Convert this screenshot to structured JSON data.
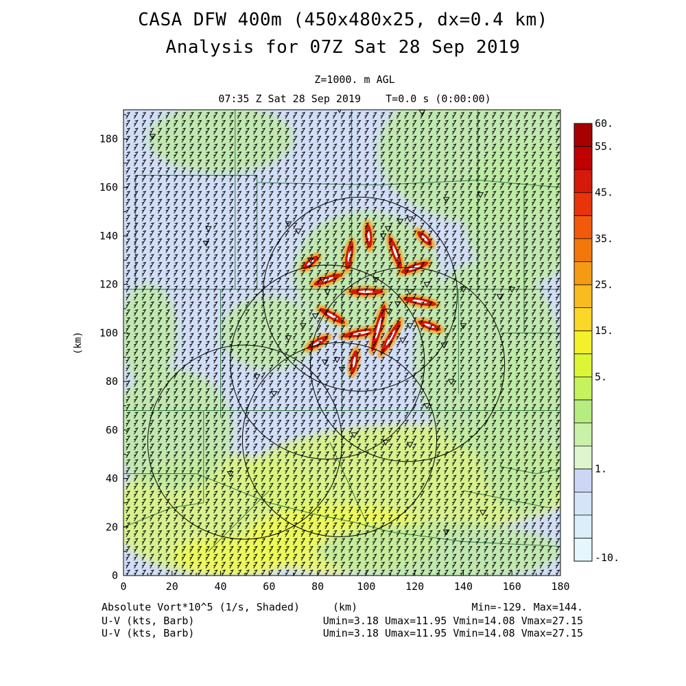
{
  "header": {
    "title_line1": "CASA DFW 400m (450x480x25, dx=0.4 km)",
    "title_line2": "Analysis for 07Z Sat 28 Sep 2019",
    "level": "Z=1000. m AGL",
    "valid_time": "07:35 Z Sat 28 Sep 2019    T=0.0 s (0:00:00)"
  },
  "footer": {
    "field": "Absolute Vort*10^5 (1/s, Shaded)",
    "xunit": "(km)",
    "minmax": "Min=-129. Max=144.",
    "vec1_label": "U-V (kts, Barb)",
    "vec1_stats": "Umin=3.18 Umax=11.95 Vmin=14.08 Vmax=27.15",
    "vec2_label": "U-V (kts, Barb)",
    "vec2_stats": "Umin=3.18 Umax=11.95 Vmin=14.08 Vmax=27.15"
  },
  "colors": {
    "background": "#d2def7",
    "green_light": "#bfeaa5",
    "green_yellow": "#d9f57a",
    "yellow": "#eefa55",
    "orange": "#f5a21a",
    "red": "#d51a0b",
    "county_line": "#2f7a45",
    "barb": "#000000",
    "radar_ring": "#000000"
  },
  "chart_data": {
    "type": "heatmap",
    "title": "CASA DFW 400m (450x480x25, dx=0.4 km) Analysis for 07Z Sat 28 Sep 2019",
    "xlabel": "(km)",
    "ylabel": "(km)",
    "xlim": [
      0,
      180
    ],
    "ylim": [
      0,
      192
    ],
    "x_ticks": [
      "0",
      "20",
      "40",
      "60",
      "80",
      "100",
      "120",
      "140",
      "160",
      "180"
    ],
    "y_ticks": [
      "0",
      "20",
      "40",
      "60",
      "80",
      "100",
      "120",
      "140",
      "160",
      "180"
    ],
    "field_units": "1/s x 10^5",
    "field_min": -129,
    "field_max": 144,
    "colorbar": {
      "labels": [
        "60.",
        "55.",
        "45.",
        "35.",
        "25.",
        "15.",
        "5.",
        "1.",
        "-10."
      ],
      "colors": [
        "#a70000",
        "#c00000",
        "#d51a0b",
        "#e8340a",
        "#f25a0b",
        "#f2780c",
        "#f59a15",
        "#f9bb20",
        "#fcd629",
        "#f4f02b",
        "#dcf535",
        "#c5f25e",
        "#b6ec82",
        "#c9f1aa",
        "#dff5cf",
        "#cdd7f5",
        "#d5e5f7",
        "#dbeefa",
        "#e5f6fc"
      ]
    },
    "radar_rings_km": [
      {
        "cx": 97.5,
        "cy": 116,
        "r": 40
      },
      {
        "cx": 84,
        "cy": 88,
        "r": 40
      },
      {
        "cx": 117,
        "cy": 87,
        "r": 40
      },
      {
        "cx": 50,
        "cy": 55,
        "r": 40
      },
      {
        "cx": 89,
        "cy": 56,
        "r": 40
      }
    ],
    "wind": {
      "u_min": 3.18,
      "u_max": 11.95,
      "v_min": 14.08,
      "v_max": 27.15,
      "units": "kts"
    },
    "features": [
      {
        "type": "vorticity-streak",
        "x": 100,
        "y": 117,
        "angle": 0,
        "len": 14
      },
      {
        "type": "vorticity-streak",
        "x": 98,
        "y": 100,
        "angle": 10,
        "len": 16
      },
      {
        "type": "vorticity-streak",
        "x": 105,
        "y": 102,
        "angle": 75,
        "len": 20
      },
      {
        "type": "vorticity-streak",
        "x": 110,
        "y": 98,
        "angle": 60,
        "len": 16
      },
      {
        "type": "vorticity-streak",
        "x": 93,
        "y": 132,
        "angle": 80,
        "len": 12
      },
      {
        "type": "vorticity-streak",
        "x": 112,
        "y": 133,
        "angle": 110,
        "len": 14
      },
      {
        "type": "vorticity-streak",
        "x": 84,
        "y": 122,
        "angle": 20,
        "len": 12
      },
      {
        "type": "vorticity-streak",
        "x": 122,
        "y": 113,
        "angle": -10,
        "len": 14
      },
      {
        "type": "vorticity-streak",
        "x": 86,
        "y": 107,
        "angle": -30,
        "len": 12
      },
      {
        "type": "vorticity-streak",
        "x": 120,
        "y": 127,
        "angle": 20,
        "len": 12
      },
      {
        "type": "vorticity-streak",
        "x": 80,
        "y": 96,
        "angle": 30,
        "len": 10
      },
      {
        "type": "vorticity-streak",
        "x": 95,
        "y": 88,
        "angle": 80,
        "len": 10
      },
      {
        "type": "vorticity-streak",
        "x": 126,
        "y": 103,
        "angle": -20,
        "len": 10
      },
      {
        "type": "vorticity-streak",
        "x": 101,
        "y": 140,
        "angle": 95,
        "len": 10
      },
      {
        "type": "vorticity-streak",
        "x": 77,
        "y": 129,
        "angle": 40,
        "len": 8
      },
      {
        "type": "vorticity-streak",
        "x": 124,
        "y": 139,
        "angle": 135,
        "len": 8
      }
    ]
  }
}
